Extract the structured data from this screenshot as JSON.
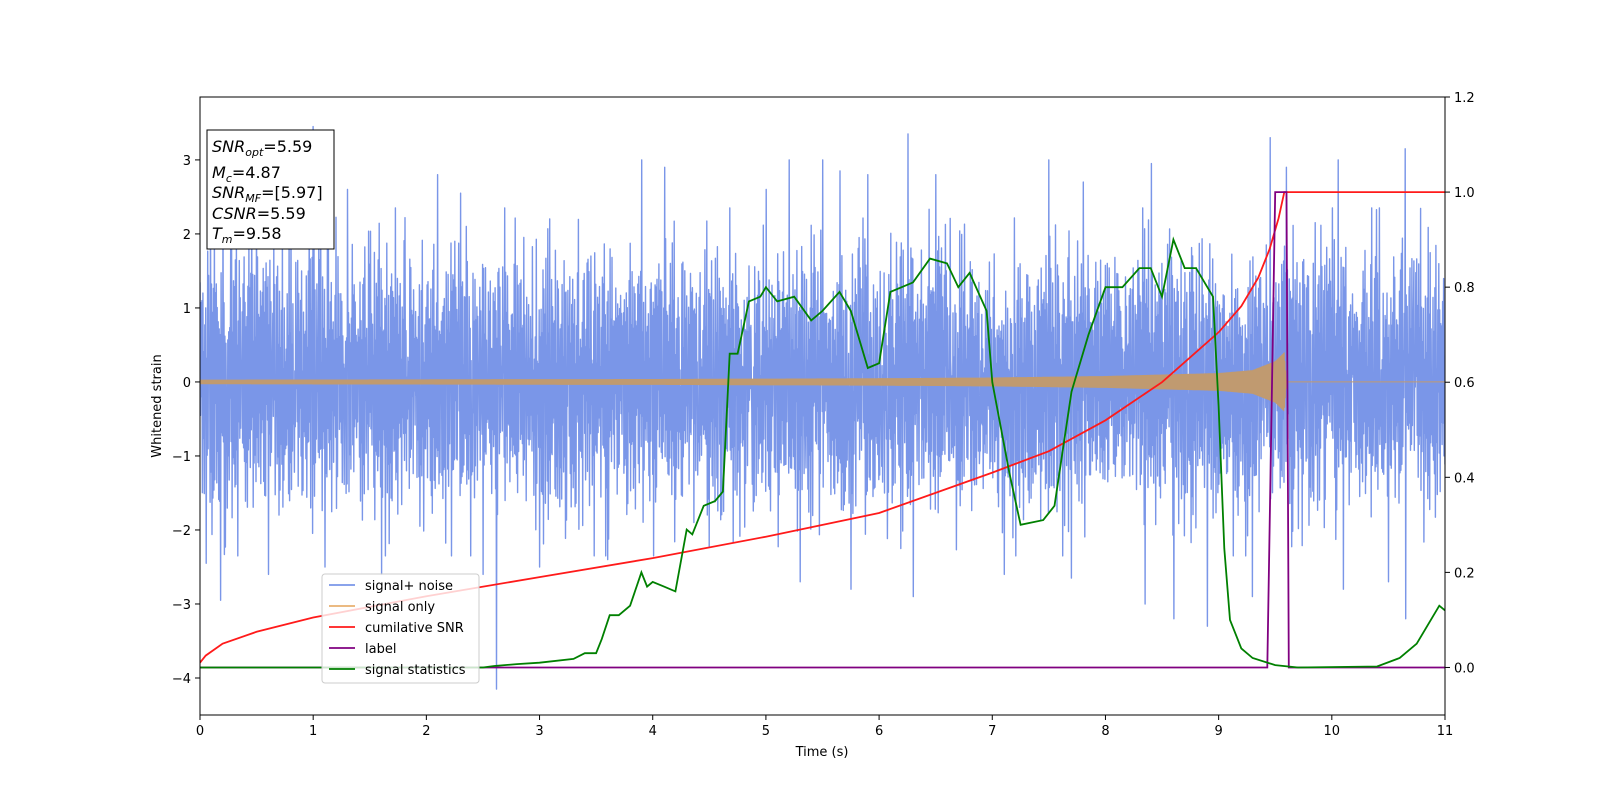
{
  "chart_data": {
    "type": "line",
    "xlabel": "Time (s)",
    "ylabel": "Whitened strain",
    "xlim": [
      0,
      11
    ],
    "ylim_left": [
      -4.5,
      3.85
    ],
    "ylim_right": [
      -0.1,
      1.2
    ],
    "xticks": [
      "0",
      "1",
      "2",
      "3",
      "4",
      "5",
      "6",
      "7",
      "8",
      "9",
      "10",
      "11"
    ],
    "yticks_left": [
      "−4",
      "−3",
      "−2",
      "−1",
      "0",
      "1",
      "2",
      "3"
    ],
    "yticks_right": [
      "0.0",
      "0.2",
      "0.4",
      "0.6",
      "0.8",
      "1.0",
      "1.2"
    ],
    "grid": false,
    "legend_position": "lower-left",
    "info_box": {
      "snr_opt": "=5.59",
      "mc": "=4.87",
      "snr_mf": "=[5.97]",
      "csnr": "=5.59",
      "tm": "=9.58"
    },
    "series": [
      {
        "name": "signal+ noise",
        "color": "#7a96e8",
        "axis": "left",
        "noise_envelope": {
          "typical_amplitude": 1.5,
          "max_peak": 3.5,
          "min_trough": -4.15,
          "t_end": 11
        },
        "peaks": [
          [
            0.09,
            2.5
          ],
          [
            0.2,
            2.3
          ],
          [
            0.5,
            2.45
          ],
          [
            0.8,
            2.2
          ],
          [
            1.0,
            3.45
          ],
          [
            1.3,
            2.6
          ],
          [
            2.1,
            2.8
          ],
          [
            2.3,
            2.55
          ],
          [
            3.9,
            3.0
          ],
          [
            4.1,
            2.9
          ],
          [
            5.0,
            2.6
          ],
          [
            5.2,
            3.0
          ],
          [
            5.5,
            3.0
          ],
          [
            5.65,
            2.85
          ],
          [
            5.9,
            2.8
          ],
          [
            6.25,
            3.35
          ],
          [
            6.5,
            2.8
          ],
          [
            7.5,
            3.0
          ],
          [
            7.8,
            2.7
          ],
          [
            8.4,
            2.95
          ],
          [
            9.45,
            3.3
          ],
          [
            9.6,
            2.9
          ],
          [
            10.05,
            3.0
          ],
          [
            10.65,
            3.15
          ]
        ],
        "troughs": [
          [
            0.05,
            -2.45
          ],
          [
            0.18,
            -2.95
          ],
          [
            0.6,
            -2.6
          ],
          [
            1.1,
            -2.5
          ],
          [
            1.6,
            -2.6
          ],
          [
            2.5,
            -2.6
          ],
          [
            2.62,
            -4.15
          ],
          [
            3.0,
            -2.5
          ],
          [
            3.6,
            -2.4
          ],
          [
            5.3,
            -2.7
          ],
          [
            5.75,
            -2.8
          ],
          [
            6.3,
            -2.9
          ],
          [
            7.1,
            -2.6
          ],
          [
            7.7,
            -2.65
          ],
          [
            8.35,
            -3.0
          ],
          [
            8.6,
            -3.2
          ],
          [
            8.9,
            -3.3
          ],
          [
            9.3,
            -2.9
          ],
          [
            10.1,
            -2.8
          ],
          [
            10.5,
            -2.7
          ],
          [
            10.65,
            -3.2
          ]
        ]
      },
      {
        "name": "signal only",
        "color": "#e8b070",
        "axis": "left",
        "envelope": {
          "t": [
            0,
            2,
            4,
            5,
            6,
            7,
            8,
            8.5,
            9,
            9.3,
            9.5,
            9.58,
            9.6,
            11
          ],
          "amp": [
            0.03,
            0.035,
            0.04,
            0.045,
            0.05,
            0.06,
            0.08,
            0.1,
            0.12,
            0.16,
            0.28,
            0.4,
            0.0,
            0.0
          ]
        }
      },
      {
        "name": "cumilative SNR",
        "color": "#ff1a1a",
        "axis": "right",
        "points": [
          [
            0,
            0.01
          ],
          [
            0.05,
            0.025
          ],
          [
            0.2,
            0.05
          ],
          [
            0.5,
            0.075
          ],
          [
            1,
            0.105
          ],
          [
            2,
            0.15
          ],
          [
            3,
            0.19
          ],
          [
            4,
            0.23
          ],
          [
            5,
            0.275
          ],
          [
            6,
            0.325
          ],
          [
            7,
            0.41
          ],
          [
            7.5,
            0.455
          ],
          [
            8,
            0.52
          ],
          [
            8.5,
            0.6
          ],
          [
            9,
            0.705
          ],
          [
            9.2,
            0.76
          ],
          [
            9.35,
            0.82
          ],
          [
            9.45,
            0.88
          ],
          [
            9.53,
            0.945
          ],
          [
            9.58,
            1.0
          ],
          [
            11,
            1.0
          ]
        ]
      },
      {
        "name": "label",
        "color": "#800080",
        "axis": "right",
        "points": [
          [
            0,
            0
          ],
          [
            9.43,
            0
          ],
          [
            9.5,
            1.0
          ],
          [
            9.6,
            1.0
          ],
          [
            9.62,
            0
          ],
          [
            11,
            0
          ]
        ]
      },
      {
        "name": "signal statistics",
        "color": "#008000",
        "axis": "right",
        "points": [
          [
            0,
            0
          ],
          [
            2.5,
            0.0
          ],
          [
            2.6,
            0.003
          ],
          [
            2.8,
            0.007
          ],
          [
            3.0,
            0.01
          ],
          [
            3.3,
            0.018
          ],
          [
            3.4,
            0.03
          ],
          [
            3.5,
            0.03
          ],
          [
            3.55,
            0.06
          ],
          [
            3.62,
            0.11
          ],
          [
            3.7,
            0.11
          ],
          [
            3.8,
            0.13
          ],
          [
            3.9,
            0.2
          ],
          [
            3.95,
            0.17
          ],
          [
            4.0,
            0.18
          ],
          [
            4.1,
            0.17
          ],
          [
            4.2,
            0.16
          ],
          [
            4.3,
            0.29
          ],
          [
            4.35,
            0.28
          ],
          [
            4.45,
            0.34
          ],
          [
            4.55,
            0.35
          ],
          [
            4.62,
            0.37
          ],
          [
            4.68,
            0.66
          ],
          [
            4.75,
            0.66
          ],
          [
            4.85,
            0.77
          ],
          [
            4.95,
            0.78
          ],
          [
            5.0,
            0.8
          ],
          [
            5.1,
            0.77
          ],
          [
            5.25,
            0.78
          ],
          [
            5.4,
            0.73
          ],
          [
            5.5,
            0.75
          ],
          [
            5.65,
            0.79
          ],
          [
            5.75,
            0.75
          ],
          [
            5.9,
            0.63
          ],
          [
            6.0,
            0.64
          ],
          [
            6.1,
            0.79
          ],
          [
            6.3,
            0.81
          ],
          [
            6.45,
            0.86
          ],
          [
            6.6,
            0.85
          ],
          [
            6.7,
            0.8
          ],
          [
            6.8,
            0.83
          ],
          [
            6.95,
            0.75
          ],
          [
            7.0,
            0.6
          ],
          [
            7.15,
            0.41
          ],
          [
            7.25,
            0.3
          ],
          [
            7.45,
            0.31
          ],
          [
            7.55,
            0.34
          ],
          [
            7.7,
            0.58
          ],
          [
            7.85,
            0.7
          ],
          [
            8.0,
            0.8
          ],
          [
            8.15,
            0.8
          ],
          [
            8.3,
            0.84
          ],
          [
            8.4,
            0.84
          ],
          [
            8.5,
            0.78
          ],
          [
            8.6,
            0.9
          ],
          [
            8.7,
            0.84
          ],
          [
            8.8,
            0.84
          ],
          [
            8.95,
            0.78
          ],
          [
            9.0,
            0.55
          ],
          [
            9.05,
            0.25
          ],
          [
            9.1,
            0.1
          ],
          [
            9.2,
            0.04
          ],
          [
            9.3,
            0.02
          ],
          [
            9.5,
            0.005
          ],
          [
            9.7,
            0.0
          ],
          [
            10.4,
            0.002
          ],
          [
            10.6,
            0.02
          ],
          [
            10.75,
            0.05
          ],
          [
            10.85,
            0.09
          ],
          [
            10.95,
            0.13
          ],
          [
            11,
            0.12
          ]
        ]
      }
    ]
  }
}
